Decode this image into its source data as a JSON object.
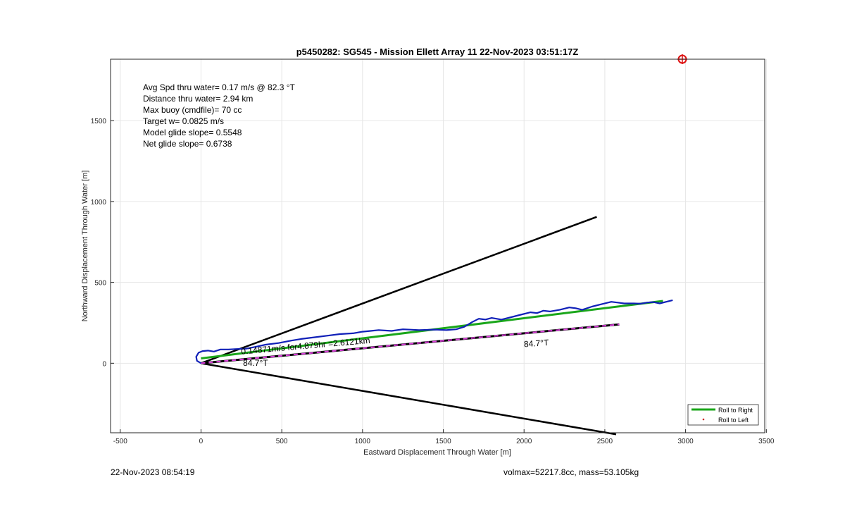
{
  "chart_data": {
    "type": "line",
    "title": "p5450282: SG545 - Mission Ellett Array 11 22-Nov-2023 03:51:17Z",
    "xlabel": "Eastward Displacement Through Water [m]",
    "ylabel": "Northward Displacement Through Water [m]",
    "xlim": [
      -560,
      3490
    ],
    "ylim": [
      -430,
      1880
    ],
    "xticks": [
      -500,
      0,
      500,
      1000,
      1500,
      2000,
      2500,
      3000,
      3500
    ],
    "yticks": [
      0,
      500,
      1000,
      1500
    ],
    "grid": true,
    "stats": [
      "Avg Spd thru water=  0.17 m/s @  82.3 °T",
      "Distance thru water=  2.94 km",
      "Max buoy (cmdfile)= 70 cc",
      "Target w= 0.0825 m/s",
      "Model glide slope= 0.5548",
      "Net glide slope= 0.6738"
    ],
    "annotations": [
      {
        "text": "0.14871m/s for4.879hr =2.6121km",
        "x": 250,
        "y": 55,
        "rotation": -5
      },
      {
        "text": "84.7°T",
        "x": 2000,
        "y": 100,
        "rotation": -4
      },
      {
        "text": "84.7°T",
        "x": 260,
        "y": -15,
        "rotation": 0
      }
    ],
    "cone_lines": [
      {
        "x": [
          0,
          2450
        ],
        "y": [
          0,
          905
        ],
        "color": "#000000"
      },
      {
        "x": [
          0,
          2570
        ],
        "y": [
          0,
          -440
        ],
        "color": "#000000"
      }
    ],
    "heading_line": {
      "x": [
        0,
        2590
      ],
      "y": [
        0,
        240
      ],
      "colors": [
        "#000000",
        "#e040e0"
      ]
    },
    "series": [
      {
        "name": "Roll to Right",
        "color": "#1aa61a",
        "x": [
          0,
          2860
        ],
        "y": [
          30,
          385
        ]
      },
      {
        "name": "Roll to Left",
        "color": "#cc2222",
        "x": [],
        "y": []
      }
    ],
    "track": {
      "color": "#1020b8",
      "x": [
        0,
        -25,
        -30,
        -15,
        10,
        45,
        80,
        120,
        170,
        220,
        280,
        330,
        400,
        480,
        560,
        620,
        700,
        780,
        860,
        940,
        1000,
        1050,
        1100,
        1180,
        1250,
        1350,
        1450,
        1520,
        1580,
        1630,
        1680,
        1720,
        1760,
        1800,
        1860,
        1920,
        1980,
        2040,
        2080,
        2120,
        2160,
        2220,
        2280,
        2320,
        2360,
        2420,
        2480,
        2540,
        2580,
        2620,
        2680,
        2720,
        2760,
        2800,
        2840,
        2880,
        2920
      ],
      "y": [
        0,
        15,
        40,
        65,
        75,
        78,
        72,
        85,
        85,
        88,
        90,
        100,
        115,
        125,
        140,
        150,
        160,
        170,
        180,
        185,
        195,
        200,
        205,
        200,
        210,
        205,
        208,
        205,
        210,
        225,
        255,
        275,
        270,
        280,
        270,
        285,
        300,
        315,
        310,
        325,
        320,
        330,
        345,
        340,
        330,
        350,
        365,
        380,
        375,
        370,
        370,
        368,
        375,
        378,
        370,
        380,
        390
      ]
    },
    "target_marker": {
      "x": 2980,
      "y": 1880,
      "color": "#dd1111"
    },
    "legend": {
      "placement": "bottom-right",
      "entries": [
        "Roll to Right",
        "Roll to Left"
      ]
    }
  },
  "footer": {
    "timestamp": "22-Nov-2023 08:54:19",
    "params": "volmax=52217.8cc, mass=53.105kg"
  }
}
